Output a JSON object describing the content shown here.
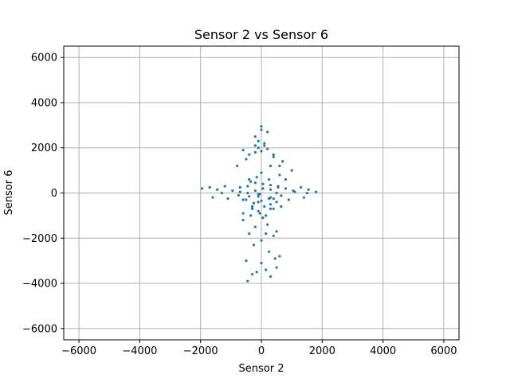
{
  "chart_data": {
    "type": "scatter",
    "title": "Sensor 2 vs Sensor 6",
    "xlabel": "Sensor 2",
    "ylabel": "Sensor 6",
    "xlim": [
      -6500,
      6500
    ],
    "ylim": [
      -6500,
      6500
    ],
    "xticks": [
      -6000,
      -4000,
      -2000,
      0,
      2000,
      4000,
      6000
    ],
    "yticks": [
      -6000,
      -4000,
      -2000,
      0,
      2000,
      4000,
      6000
    ],
    "xtick_labels": [
      "−6000",
      "−4000",
      "−2000",
      "0",
      "2000",
      "4000",
      "6000"
    ],
    "ytick_labels": [
      "−6000",
      "−4000",
      "−2000",
      "0",
      "2000",
      "4000",
      "6000"
    ],
    "grid": true,
    "marker_color": "#1f77b4",
    "series": [
      {
        "x": [
          -1950,
          -1700,
          -1450,
          -1200,
          -950,
          -700,
          -450,
          -200,
          50,
          300,
          550,
          800,
          1050,
          1300,
          1550,
          1800,
          -1600,
          -1100,
          -600,
          -100,
          400,
          900,
          1400,
          -1300,
          -700,
          -100,
          500,
          1100,
          1500,
          -400,
          0,
          300,
          600,
          -800,
          -500,
          -200,
          100,
          400,
          700,
          1000,
          -200,
          0,
          200,
          -100,
          100,
          0,
          -300,
          300,
          -50,
          50,
          -600,
          -200,
          200,
          500,
          -400,
          400,
          0,
          -250,
          250,
          0,
          -150,
          150,
          -500,
          -300,
          500,
          -450,
          300,
          600,
          450,
          150,
          -100,
          -600,
          -400,
          -200,
          0,
          200,
          400,
          600,
          800,
          -300,
          -100,
          100,
          300,
          -600,
          -350,
          -100,
          150,
          400,
          650,
          -350,
          -150,
          50,
          250,
          -450,
          -200,
          50,
          300,
          550,
          -500,
          -250,
          0,
          250,
          500,
          -750,
          -400,
          -50,
          300,
          650
        ],
        "y": [
          200,
          250,
          150,
          300,
          100,
          250,
          0,
          100,
          200,
          150,
          300,
          200,
          100,
          250,
          150,
          50,
          -200,
          -250,
          -300,
          -150,
          -250,
          -300,
          -200,
          0,
          50,
          -50,
          0,
          50,
          0,
          600,
          900,
          1200,
          800,
          1200,
          1500,
          1800,
          2100,
          1700,
          1400,
          1000,
          2500,
          2800,
          2700,
          2300,
          2200,
          2950,
          -600,
          -700,
          -900,
          -1100,
          -1200,
          -1500,
          -1400,
          -1700,
          -1800,
          -1900,
          -2100,
          -2300,
          -2600,
          -3100,
          -3500,
          -3400,
          -3000,
          -3600,
          -3300,
          -3900,
          -3700,
          -2800,
          -2900,
          -1800,
          2000,
          1900,
          1700,
          2100,
          1850,
          1950,
          1600,
          1200,
          600,
          -700,
          -400,
          -600,
          -500,
          -900,
          -1000,
          -800,
          -1000,
          -700,
          -600,
          500,
          700,
          400,
          600,
          300,
          450,
          200,
          350,
          250,
          -300,
          -450,
          -350,
          -250,
          -400,
          -100,
          -150,
          -50,
          -200,
          -120
        ]
      }
    ]
  }
}
